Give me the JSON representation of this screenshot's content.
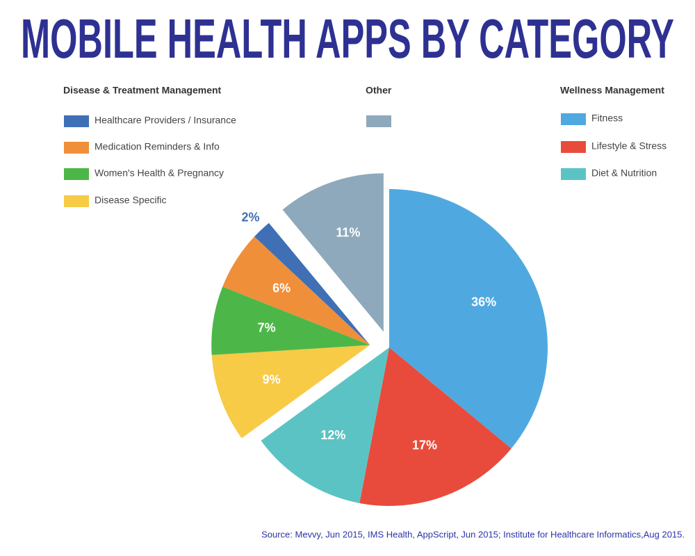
{
  "chart_data": {
    "type": "pie",
    "title": "MOBILE HEALTH APPS BY CATEGORY",
    "groups": [
      {
        "name": "Disease & Treatment Management",
        "slices": [
          {
            "name": "Healthcare Providers / Insurance",
            "value": 2,
            "value_label": "2%",
            "color": "#3f6fb5"
          },
          {
            "name": "Medication Reminders & Info",
            "value": 6,
            "value_label": "6%",
            "color": "#ef8f3a"
          },
          {
            "name": "Women's Health & Pregnancy",
            "value": 7,
            "value_label": "7%",
            "color": "#4cb748"
          },
          {
            "name": "Disease Specific",
            "value": 9,
            "value_label": "9%",
            "color": "#f7cb45"
          }
        ]
      },
      {
        "name": "Other",
        "slices": [
          {
            "name": null,
            "value": 11,
            "value_label": "11%",
            "color": "#8ea9bb"
          }
        ]
      },
      {
        "name": "Wellness Management",
        "slices": [
          {
            "name": "Fitness",
            "value": 36,
            "value_label": "36%",
            "color": "#4fa9e0"
          },
          {
            "name": "Lifestyle & Stress",
            "value": 17,
            "value_label": "17%",
            "color": "#e84b3c"
          },
          {
            "name": "Diet & Nutrition",
            "value": 12,
            "value_label": "12%",
            "color": "#5cc3c4"
          }
        ]
      }
    ],
    "source": "Source: Mevvy, Jun 2015, IMS Health, AppScript, Jun 2015; Institute for Healthcare Informatics,Aug 2015."
  }
}
